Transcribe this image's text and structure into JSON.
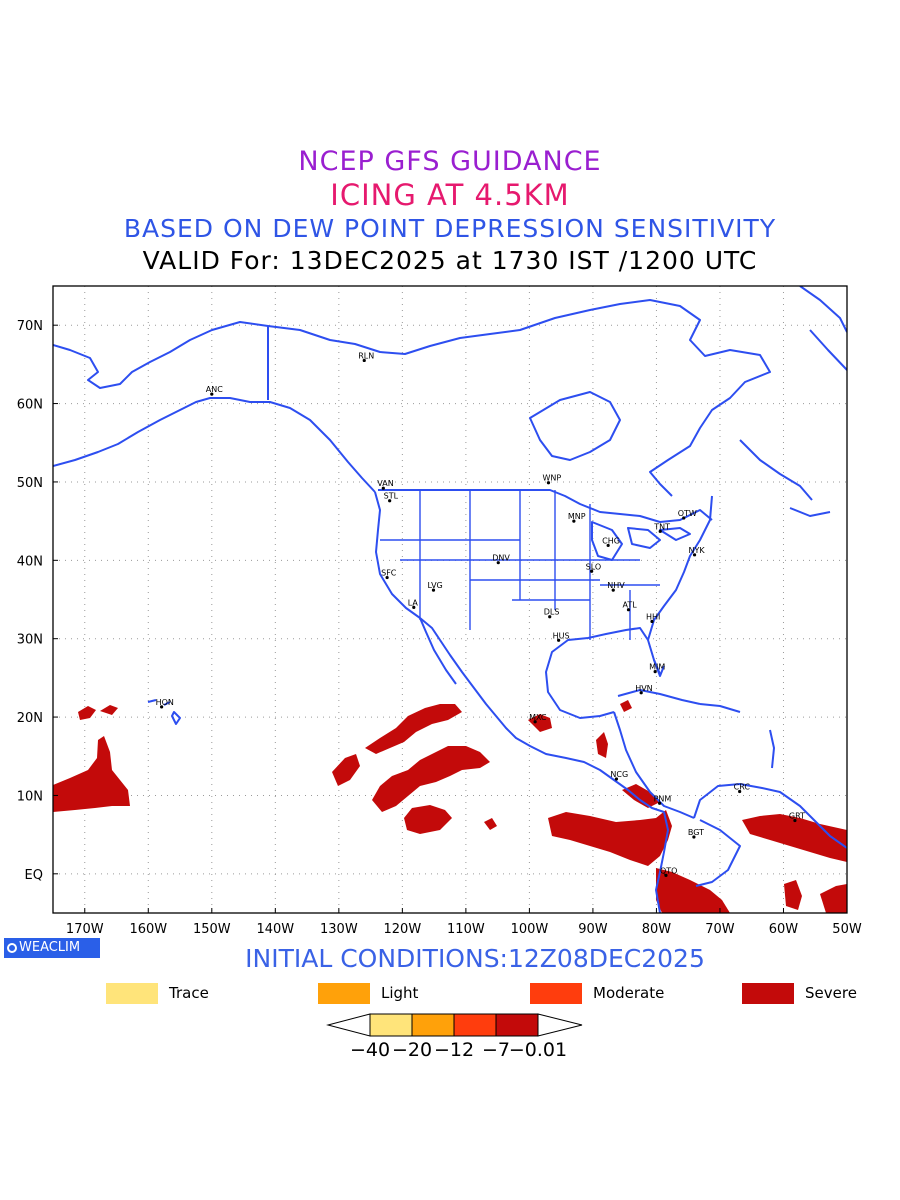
{
  "titles": {
    "line1": "NCEP GFS GUIDANCE",
    "line2": "ICING AT 4.5KM",
    "line3": "BASED ON DEW POINT DEPRESSION SENSITIVITY",
    "line4": "VALID For: 13DEC2025 at 1730 IST /1200 UTC"
  },
  "map": {
    "lon_range": [
      -175,
      -50
    ],
    "lat_range": [
      -5,
      75
    ],
    "lon_ticks": [
      "170W",
      "160W",
      "150W",
      "140W",
      "130W",
      "120W",
      "110W",
      "100W",
      "90W",
      "80W",
      "70W",
      "60W",
      "50W"
    ],
    "lat_ticks": [
      "70N",
      "60N",
      "50N",
      "40N",
      "30N",
      "20N",
      "10N",
      "EQ"
    ],
    "coastline_color": "#2d4ef0",
    "cities": [
      {
        "code": "RLN",
        "lon": -126,
        "lat": 65.5
      },
      {
        "code": "ANC",
        "lon": -150,
        "lat": 61.2
      },
      {
        "code": "VAN",
        "lon": -123,
        "lat": 49.2
      },
      {
        "code": "STL",
        "lon": -122,
        "lat": 47.6
      },
      {
        "code": "WNP",
        "lon": -97,
        "lat": 49.9
      },
      {
        "code": "MNP",
        "lon": -93,
        "lat": 45
      },
      {
        "code": "OTW",
        "lon": -75.7,
        "lat": 45.4
      },
      {
        "code": "TNT",
        "lon": -79.4,
        "lat": 43.7
      },
      {
        "code": "CHG",
        "lon": -87.6,
        "lat": 41.9
      },
      {
        "code": "NYK",
        "lon": -74,
        "lat": 40.7
      },
      {
        "code": "DNV",
        "lon": -104.9,
        "lat": 39.7
      },
      {
        "code": "SFC",
        "lon": -122.4,
        "lat": 37.8
      },
      {
        "code": "SLO",
        "lon": -90.2,
        "lat": 38.6
      },
      {
        "code": "LVG",
        "lon": -115.1,
        "lat": 36.2
      },
      {
        "code": "NHV",
        "lon": -86.8,
        "lat": 36.2
      },
      {
        "code": "LA",
        "lon": -118.2,
        "lat": 34
      },
      {
        "code": "ATL",
        "lon": -84.4,
        "lat": 33.7
      },
      {
        "code": "DLS",
        "lon": -96.8,
        "lat": 32.8
      },
      {
        "code": "HHI",
        "lon": -80.7,
        "lat": 32.2
      },
      {
        "code": "HUS",
        "lon": -95.4,
        "lat": 29.8
      },
      {
        "code": "MIM",
        "lon": -80.2,
        "lat": 25.8
      },
      {
        "code": "HVN",
        "lon": -82.4,
        "lat": 23.1
      },
      {
        "code": "HON",
        "lon": -157.9,
        "lat": 21.3
      },
      {
        "code": "MXC",
        "lon": -99.1,
        "lat": 19.4
      },
      {
        "code": "NCG",
        "lon": -86.3,
        "lat": 12.1
      },
      {
        "code": "CRC",
        "lon": -66.9,
        "lat": 10.5
      },
      {
        "code": "PNM",
        "lon": -79.5,
        "lat": 9
      },
      {
        "code": "GRT",
        "lon": -58.2,
        "lat": 6.8
      },
      {
        "code": "BGT",
        "lon": -74.1,
        "lat": 4.7
      },
      {
        "code": "QTO",
        "lon": -78.5,
        "lat": -0.2
      }
    ]
  },
  "footer": {
    "weaclim": "WEACLIM",
    "initial_conditions": "INITIAL CONDITIONS:12Z08DEC2025"
  },
  "legend": [
    {
      "label": "Trace",
      "color": "#ffe47a"
    },
    {
      "label": "Light",
      "color": "#ffa10a"
    },
    {
      "label": "Moderate",
      "color": "#ff3d0d"
    },
    {
      "label": "Severe",
      "color": "#c30a0a"
    }
  ],
  "colorbar": {
    "colors": [
      "#ffe47a",
      "#ffa10a",
      "#ff3d0d",
      "#c30a0a"
    ],
    "labels": [
      "−40",
      "−20",
      "−12",
      "−7",
      "−0.01"
    ]
  },
  "icing_areas_severe_color": "#c30a0a"
}
